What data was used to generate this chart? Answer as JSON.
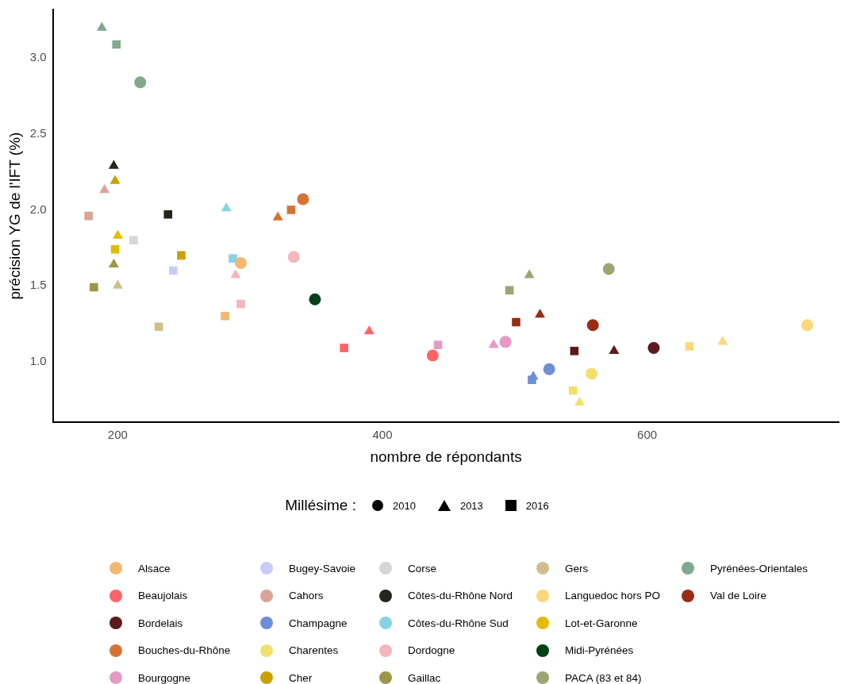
{
  "chart_data": {
    "type": "scatter",
    "xlabel": "nombre de répondants",
    "ylabel": "précision YG de l'IFT (%)",
    "legend_title": "Millésime :",
    "legend": "bottom",
    "xlim": [
      151,
      745
    ],
    "ylim": [
      0.6,
      3.32
    ],
    "xticks": [
      200,
      400,
      600
    ],
    "yticks": [
      {
        "value": 1,
        "label": "1.0"
      },
      {
        "value": 1.5,
        "label": "1.5"
      },
      {
        "value": 2,
        "label": "2.0"
      },
      {
        "value": 2.5,
        "label": "2.5"
      },
      {
        "value": 3,
        "label": "3.0"
      }
    ],
    "series": [
      {
        "name": "2010",
        "color": "#000000",
        "marker": "circle"
      },
      {
        "name": "2013",
        "color": "#000000",
        "marker": "triangle"
      },
      {
        "name": "2016",
        "color": "#000000",
        "marker": "square"
      },
      {
        "name": "Alsace",
        "color": "#f2b872",
        "marker": [
          "circle",
          "square"
        ],
        "x": [
          293,
          281
        ],
        "values": [
          1.65,
          1.3
        ]
      },
      {
        "name": "Beaujolais",
        "color": "#ff6366",
        "marker": [
          "circle",
          "triangle",
          "square"
        ],
        "x": [
          438,
          390,
          371
        ],
        "values": [
          1.04,
          1.2,
          1.09
        ]
      },
      {
        "name": "Bordelais",
        "color": "#5c1a1b",
        "marker": [
          "circle",
          "triangle",
          "square"
        ],
        "x": [
          605,
          575,
          545
        ],
        "values": [
          1.09,
          1.07,
          1.07
        ]
      },
      {
        "name": "Bouches-du-Rhône",
        "color": "#d67236",
        "marker": [
          "circle",
          "triangle",
          "square"
        ],
        "x": [
          340,
          321,
          331
        ],
        "values": [
          2.07,
          1.95,
          2.0
        ]
      },
      {
        "name": "Bourgogne",
        "color": "#e49ac4",
        "marker": [
          "circle",
          "triangle",
          "square"
        ],
        "x": [
          493,
          484,
          442
        ],
        "values": [
          1.13,
          1.11,
          1.11
        ]
      },
      {
        "name": "Bugey-Savoie",
        "color": "#c8ccf8",
        "marker": [
          "square"
        ],
        "x": [
          242
        ],
        "values": [
          1.6
        ]
      },
      {
        "name": "Cahors",
        "color": "#dca397",
        "marker": [
          "triangle",
          "square"
        ],
        "x": [
          190,
          178
        ],
        "values": [
          2.13,
          1.96
        ]
      },
      {
        "name": "Champagne",
        "color": "#6e8fd6",
        "marker": [
          "circle",
          "triangle",
          "square"
        ],
        "x": [
          526,
          514,
          513
        ],
        "values": [
          0.95,
          0.9,
          0.88
        ]
      },
      {
        "name": "Charentes",
        "color": "#f3df6c",
        "marker": [
          "circle",
          "triangle",
          "square"
        ],
        "x": [
          558,
          549,
          544
        ],
        "values": [
          0.92,
          0.73,
          0.81
        ]
      },
      {
        "name": "Cher",
        "color": "#c9a200",
        "marker": [
          "triangle",
          "square"
        ],
        "x": [
          198,
          248
        ],
        "values": [
          2.19,
          1.7
        ]
      },
      {
        "name": "Corse",
        "color": "#d5d5d5",
        "marker": [
          "square"
        ],
        "x": [
          212
        ],
        "values": [
          1.8
        ]
      },
      {
        "name": "Côtes-du-Rhône Nord",
        "color": "#23261a",
        "marker": [
          "triangle",
          "square"
        ],
        "x": [
          197,
          238
        ],
        "values": [
          2.29,
          1.97
        ]
      },
      {
        "name": "Côtes-du-Rhône Sud",
        "color": "#86d4e3",
        "marker": [
          "triangle",
          "square"
        ],
        "x": [
          282,
          287
        ],
        "values": [
          2.01,
          1.68
        ]
      },
      {
        "name": "Dordogne",
        "color": "#f4b5bd",
        "marker": [
          "circle",
          "triangle",
          "square"
        ],
        "x": [
          333,
          289,
          293
        ],
        "values": [
          1.69,
          1.57,
          1.38
        ]
      },
      {
        "name": "Gaillac",
        "color": "#9c964a",
        "marker": [
          "triangle",
          "square"
        ],
        "x": [
          197,
          182
        ],
        "values": [
          1.64,
          1.49
        ]
      },
      {
        "name": "Gers",
        "color": "#cdc08c",
        "marker": [
          "triangle",
          "square"
        ],
        "x": [
          200,
          231
        ],
        "values": [
          1.5,
          1.23
        ]
      },
      {
        "name": "Languedoc hors PO",
        "color": "#fad77b",
        "marker": [
          "circle",
          "triangle",
          "square"
        ],
        "x": [
          721,
          657,
          632
        ],
        "values": [
          1.24,
          1.13,
          1.1
        ]
      },
      {
        "name": "Lot-et-Garonne",
        "color": "#e2bc00",
        "marker": [
          "triangle",
          "square"
        ],
        "x": [
          200,
          198
        ],
        "values": [
          1.83,
          1.74
        ]
      },
      {
        "name": "Midi-Pyrénées",
        "color": "#02401b",
        "marker": [
          "circle"
        ],
        "x": [
          349
        ],
        "values": [
          1.41
        ]
      },
      {
        "name": "PACA (83 et 84)",
        "color": "#9ea374",
        "marker": [
          "circle",
          "triangle",
          "square"
        ],
        "x": [
          571,
          511,
          496
        ],
        "values": [
          1.61,
          1.57,
          1.47
        ]
      },
      {
        "name": "Pyrénées-Orientales",
        "color": "#81a88d",
        "marker": [
          "circle",
          "triangle",
          "square"
        ],
        "x": [
          217,
          188,
          199
        ],
        "values": [
          2.84,
          3.2,
          3.09
        ]
      },
      {
        "name": "Val de Loire",
        "color": "#972d15",
        "marker": [
          "circle",
          "triangle",
          "square"
        ],
        "x": [
          559,
          519,
          501
        ],
        "values": [
          1.24,
          1.31,
          1.26
        ]
      }
    ]
  }
}
